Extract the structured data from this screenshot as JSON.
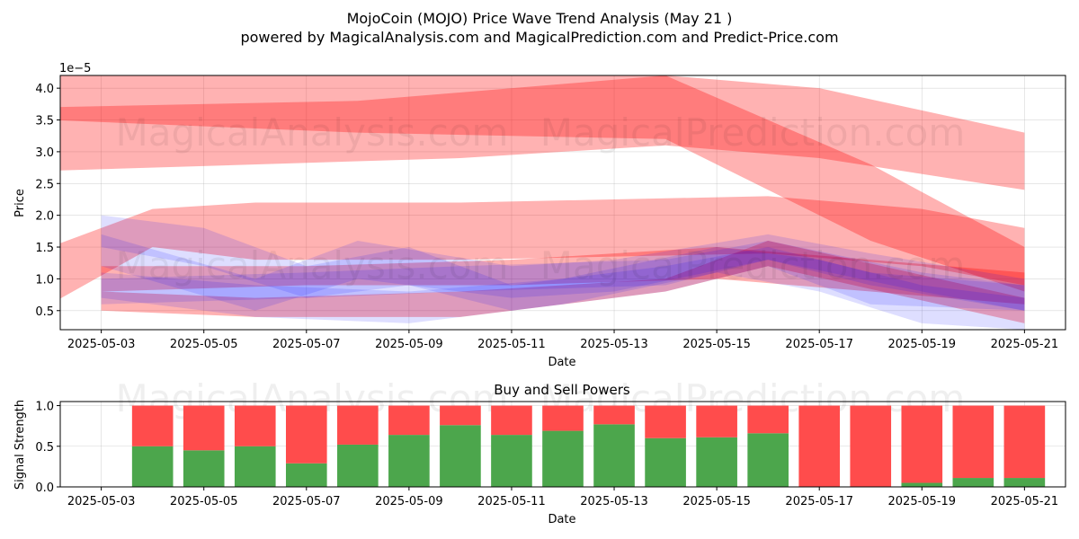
{
  "header": {
    "title": "MojoCoin (MOJO) Price Wave Trend Analysis (May 21 )",
    "subtitle": "powered by MagicalAnalysis.com and MagicalPrediction.com and Predict-Price.com"
  },
  "watermarks": [
    "MagicalAnalysis.com",
    "MagicalPrediction.com"
  ],
  "chart_data": [
    {
      "type": "area",
      "title": "",
      "xlabel": "Date",
      "ylabel": "Price",
      "y_multiplier": "1e−5",
      "x_ticks": [
        "2025-05-03",
        "2025-05-05",
        "2025-05-07",
        "2025-05-09",
        "2025-05-11",
        "2025-05-13",
        "2025-05-15",
        "2025-05-17",
        "2025-05-19",
        "2025-05-21"
      ],
      "y_ticks": [
        "0.5",
        "1.0",
        "1.5",
        "2.0",
        "2.5",
        "3.0",
        "3.5",
        "4.0"
      ],
      "xlim": [
        "2025-05-02",
        "2025-05-22"
      ],
      "ylim": [
        0.2,
        4.2
      ],
      "grid": true,
      "colors": {
        "red_band": "#ff0000",
        "blue_band": "#0000ff"
      },
      "red_bands": [
        {
          "x": [
            "2025-05-02",
            "2025-05-10",
            "2025-05-14",
            "2025-05-17",
            "2025-05-21"
          ],
          "upper": [
            4.2,
            4.2,
            4.2,
            4.0,
            3.3
          ],
          "lower": [
            2.7,
            2.9,
            3.1,
            2.9,
            2.4
          ]
        },
        {
          "x": [
            "2025-05-02",
            "2025-05-08",
            "2025-05-14",
            "2025-05-18",
            "2025-05-21"
          ],
          "upper": [
            3.7,
            3.8,
            4.2,
            2.8,
            1.5
          ],
          "lower": [
            3.5,
            3.3,
            3.2,
            1.6,
            0.8
          ]
        },
        {
          "x": [
            "2025-05-02",
            "2025-05-04",
            "2025-05-06",
            "2025-05-10",
            "2025-05-16",
            "2025-05-19",
            "2025-05-21"
          ],
          "upper": [
            1.5,
            2.1,
            2.2,
            2.2,
            2.3,
            2.1,
            1.8
          ],
          "lower": [
            0.6,
            1.5,
            1.3,
            1.3,
            1.4,
            1.2,
            0.9
          ]
        },
        {
          "x": [
            "2025-05-03",
            "2025-05-07",
            "2025-05-11",
            "2025-05-15",
            "2025-05-18",
            "2025-05-21"
          ],
          "upper": [
            1.2,
            1.2,
            1.3,
            1.5,
            1.3,
            1.1
          ],
          "lower": [
            0.8,
            0.9,
            0.9,
            1.0,
            0.8,
            0.6
          ]
        },
        {
          "x": [
            "2025-05-03",
            "2025-05-06",
            "2025-05-10",
            "2025-05-14",
            "2025-05-16",
            "2025-05-21"
          ],
          "upper": [
            0.8,
            0.7,
            0.8,
            1.0,
            1.6,
            0.7
          ],
          "lower": [
            0.5,
            0.4,
            0.4,
            0.8,
            1.2,
            0.3
          ]
        }
      ],
      "blue_bands": [
        {
          "x": [
            "2025-05-03",
            "2025-05-05",
            "2025-05-07",
            "2025-05-09",
            "2025-05-11",
            "2025-05-14",
            "2025-05-16",
            "2025-05-18",
            "2025-05-21"
          ],
          "upper": [
            2.0,
            1.8,
            1.2,
            1.5,
            0.9,
            1.2,
            1.5,
            1.1,
            0.9
          ],
          "lower": [
            1.5,
            1.2,
            0.7,
            0.9,
            0.5,
            0.8,
            1.2,
            0.6,
            0.5
          ]
        },
        {
          "x": [
            "2025-05-03",
            "2025-05-06",
            "2025-05-09",
            "2025-05-12",
            "2025-05-15",
            "2025-05-17",
            "2025-05-19",
            "2025-05-21"
          ],
          "upper": [
            1.1,
            0.9,
            0.8,
            1.0,
            1.5,
            1.3,
            0.9,
            0.7
          ],
          "lower": [
            0.7,
            0.4,
            0.3,
            0.6,
            1.1,
            0.8,
            0.3,
            0.2
          ]
        },
        {
          "x": [
            "2025-05-03",
            "2025-05-07",
            "2025-05-10",
            "2025-05-14",
            "2025-05-16",
            "2025-05-19",
            "2025-05-21"
          ],
          "upper": [
            1.0,
            1.1,
            1.2,
            1.3,
            1.6,
            1.1,
            0.9
          ],
          "lower": [
            0.6,
            0.7,
            0.8,
            0.9,
            1.3,
            0.8,
            0.5
          ]
        },
        {
          "x": [
            "2025-05-03",
            "2025-05-06",
            "2025-05-08",
            "2025-05-11",
            "2025-05-13",
            "2025-05-16",
            "2025-05-18",
            "2025-05-21"
          ],
          "upper": [
            1.7,
            1.0,
            1.6,
            1.2,
            1.3,
            1.7,
            1.4,
            1.0
          ],
          "lower": [
            1.2,
            0.5,
            1.0,
            0.7,
            0.8,
            1.3,
            0.9,
            0.5
          ]
        }
      ]
    },
    {
      "type": "bar",
      "title": "Buy and Sell Powers",
      "xlabel": "Date",
      "ylabel": "Signal Strength",
      "x_ticks": [
        "2025-05-03",
        "2025-05-05",
        "2025-05-07",
        "2025-05-09",
        "2025-05-11",
        "2025-05-13",
        "2025-05-15",
        "2025-05-17",
        "2025-05-19",
        "2025-05-21"
      ],
      "y_ticks": [
        "0.0",
        "0.5",
        "1.0"
      ],
      "ylim": [
        0,
        1.05
      ],
      "grid": true,
      "categories": [
        "2025-05-04",
        "2025-05-05",
        "2025-05-06",
        "2025-05-07",
        "2025-05-08",
        "2025-05-09",
        "2025-05-10",
        "2025-05-11",
        "2025-05-12",
        "2025-05-13",
        "2025-05-14",
        "2025-05-15",
        "2025-05-16",
        "2025-05-17",
        "2025-05-18",
        "2025-05-19",
        "2025-05-20",
        "2025-05-21"
      ],
      "colors": {
        "buy": "#4ca64c",
        "sell": "#ff4c4c"
      },
      "buy": [
        0.5,
        0.45,
        0.5,
        0.29,
        0.52,
        0.64,
        0.76,
        0.64,
        0.69,
        0.77,
        0.6,
        0.61,
        0.66,
        0.0,
        0.0,
        0.05,
        0.11,
        0.11
      ],
      "sell": [
        0.5,
        0.55,
        0.5,
        0.71,
        0.48,
        0.36,
        0.24,
        0.36,
        0.31,
        0.23,
        0.4,
        0.39,
        0.34,
        1.0,
        1.0,
        0.95,
        0.89,
        0.89
      ]
    }
  ]
}
